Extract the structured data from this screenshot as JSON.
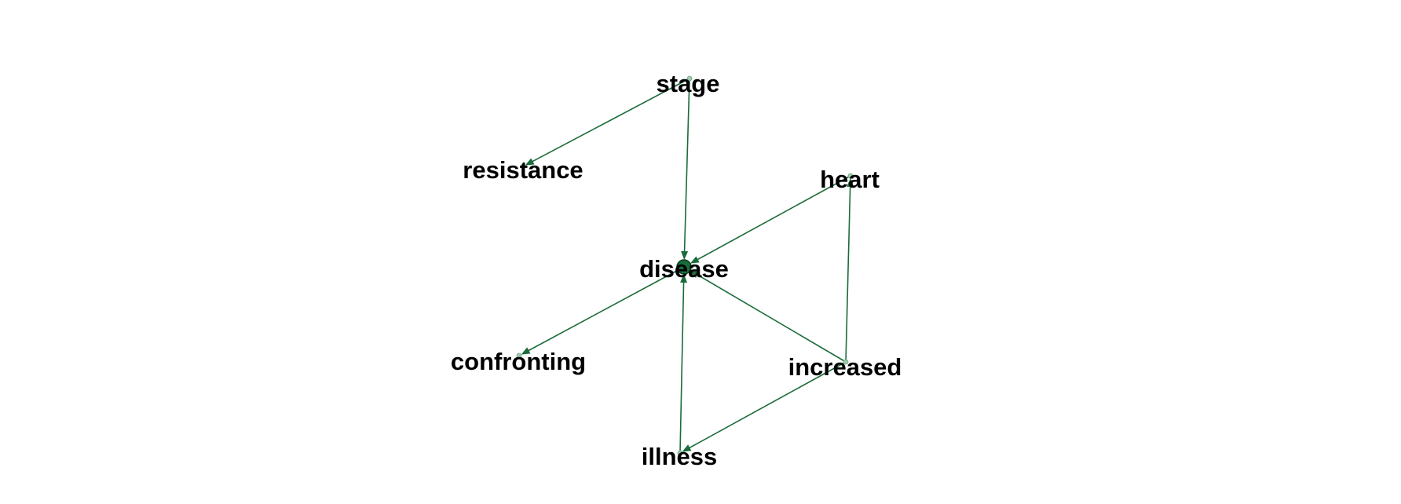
{
  "graph": {
    "edge_color": "#1a6b3a",
    "node_color": "#1a6b3a",
    "node_outline_color": "#0b3d1f",
    "nodes": [
      {
        "id": "stage",
        "label": "stage"
      },
      {
        "id": "resistance",
        "label": "resistance"
      },
      {
        "id": "heart",
        "label": "heart"
      },
      {
        "id": "disease",
        "label": "disease"
      },
      {
        "id": "confronting",
        "label": "confronting"
      },
      {
        "id": "increased",
        "label": "increased"
      },
      {
        "id": "illness",
        "label": "illness"
      }
    ],
    "edges": [
      {
        "source": "stage",
        "target": "resistance"
      },
      {
        "source": "stage",
        "target": "disease"
      },
      {
        "source": "heart",
        "target": "disease"
      },
      {
        "source": "disease",
        "target": "confronting"
      },
      {
        "source": "illness",
        "target": "disease"
      },
      {
        "source": "increased",
        "target": "disease"
      },
      {
        "source": "increased",
        "target": "heart"
      },
      {
        "source": "increased",
        "target": "illness"
      }
    ]
  }
}
